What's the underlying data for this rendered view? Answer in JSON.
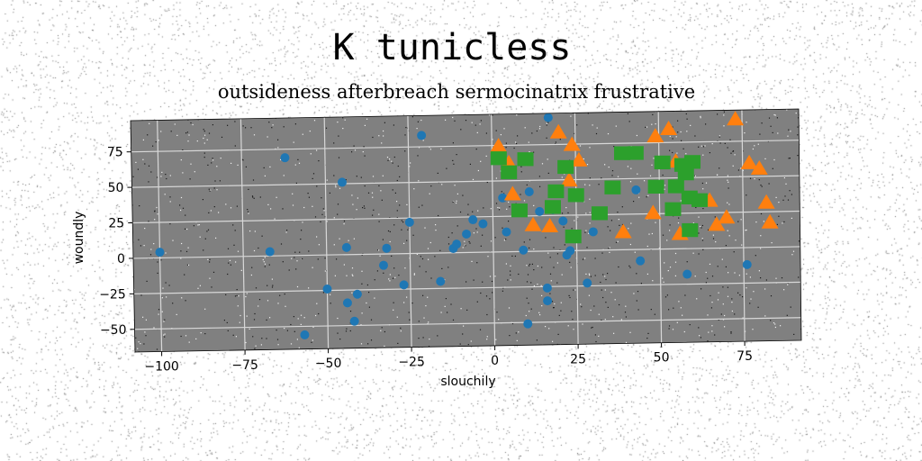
{
  "chart_data": {
    "type": "scatter",
    "title": "K tunicless",
    "subtitle": "outsideness afterbreach sermocinatrix frustrative",
    "xlabel": "slouchily",
    "ylabel": "woundly",
    "xlim": [
      -108,
      92
    ],
    "ylim": [
      -66,
      97
    ],
    "xticks": [
      -100,
      -75,
      -50,
      -25,
      0,
      25,
      50,
      75
    ],
    "yticks": [
      -50,
      -25,
      0,
      25,
      50,
      75
    ],
    "xtick_labels": [
      "−100",
      "−75",
      "−50",
      "−25",
      "0",
      "25",
      "50",
      "75"
    ],
    "ytick_labels": [
      "−50",
      "−25",
      "0",
      "25",
      "50",
      "75"
    ],
    "grid": true,
    "plot_background": "#808080",
    "series": [
      {
        "marker": "circle",
        "color": "#1f77b4",
        "points": [
          [
            -100,
            4
          ],
          [
            -67,
            3
          ],
          [
            -62,
            69
          ],
          [
            -57,
            -56
          ],
          [
            -50,
            -24
          ],
          [
            -45,
            51
          ],
          [
            -44,
            5
          ],
          [
            -44,
            -34
          ],
          [
            -42,
            -47
          ],
          [
            -41,
            -28
          ],
          [
            -32,
            4
          ],
          [
            -33,
            -8
          ],
          [
            -27,
            -22
          ],
          [
            -25,
            22
          ],
          [
            -21,
            83
          ],
          [
            -16,
            -20
          ],
          [
            -12,
            3
          ],
          [
            -11,
            6
          ],
          [
            -8,
            13
          ],
          [
            -6,
            23
          ],
          [
            -3,
            20
          ],
          [
            3,
            38
          ],
          [
            4,
            14
          ],
          [
            9,
            1
          ],
          [
            10,
            -51
          ],
          [
            11,
            42
          ],
          [
            14,
            28
          ],
          [
            16,
            -26
          ],
          [
            16,
            -35
          ],
          [
            17,
            94
          ],
          [
            18,
            29
          ],
          [
            21,
            21
          ],
          [
            22,
            -3
          ],
          [
            23,
            0
          ],
          [
            28,
            -23
          ],
          [
            30,
            13
          ],
          [
            43,
            42
          ],
          [
            44,
            -8
          ],
          [
            58,
            -18
          ],
          [
            76,
            -12
          ]
        ]
      },
      {
        "marker": "triangle",
        "color": "#ff7f0e",
        "points": [
          [
            2,
            74
          ],
          [
            5,
            62
          ],
          [
            6,
            40
          ],
          [
            12,
            18
          ],
          [
            17,
            17
          ],
          [
            20,
            83
          ],
          [
            23,
            49
          ],
          [
            24,
            74
          ],
          [
            26,
            63
          ],
          [
            39,
            12
          ],
          [
            48,
            25
          ],
          [
            49,
            79
          ],
          [
            53,
            84
          ],
          [
            55,
            61
          ],
          [
            56,
            10
          ],
          [
            65,
            33
          ],
          [
            67,
            16
          ],
          [
            70,
            21
          ],
          [
            73,
            90
          ],
          [
            77,
            59
          ],
          [
            80,
            55
          ],
          [
            82,
            31
          ],
          [
            83,
            17
          ]
        ]
      },
      {
        "marker": "square",
        "color": "#2ca02c",
        "points": [
          [
            2,
            66
          ],
          [
            5,
            56
          ],
          [
            8,
            29
          ],
          [
            10,
            65
          ],
          [
            18,
            31
          ],
          [
            19,
            42
          ],
          [
            22,
            59
          ],
          [
            24,
            10
          ],
          [
            25,
            39
          ],
          [
            32,
            26
          ],
          [
            36,
            44
          ],
          [
            39,
            68
          ],
          [
            43,
            68
          ],
          [
            49,
            44
          ],
          [
            51,
            61
          ],
          [
            54,
            28
          ],
          [
            55,
            44
          ],
          [
            57,
            59
          ],
          [
            58,
            53
          ],
          [
            59,
            36
          ],
          [
            59,
            13
          ],
          [
            60,
            61
          ],
          [
            62,
            34
          ]
        ]
      }
    ]
  }
}
